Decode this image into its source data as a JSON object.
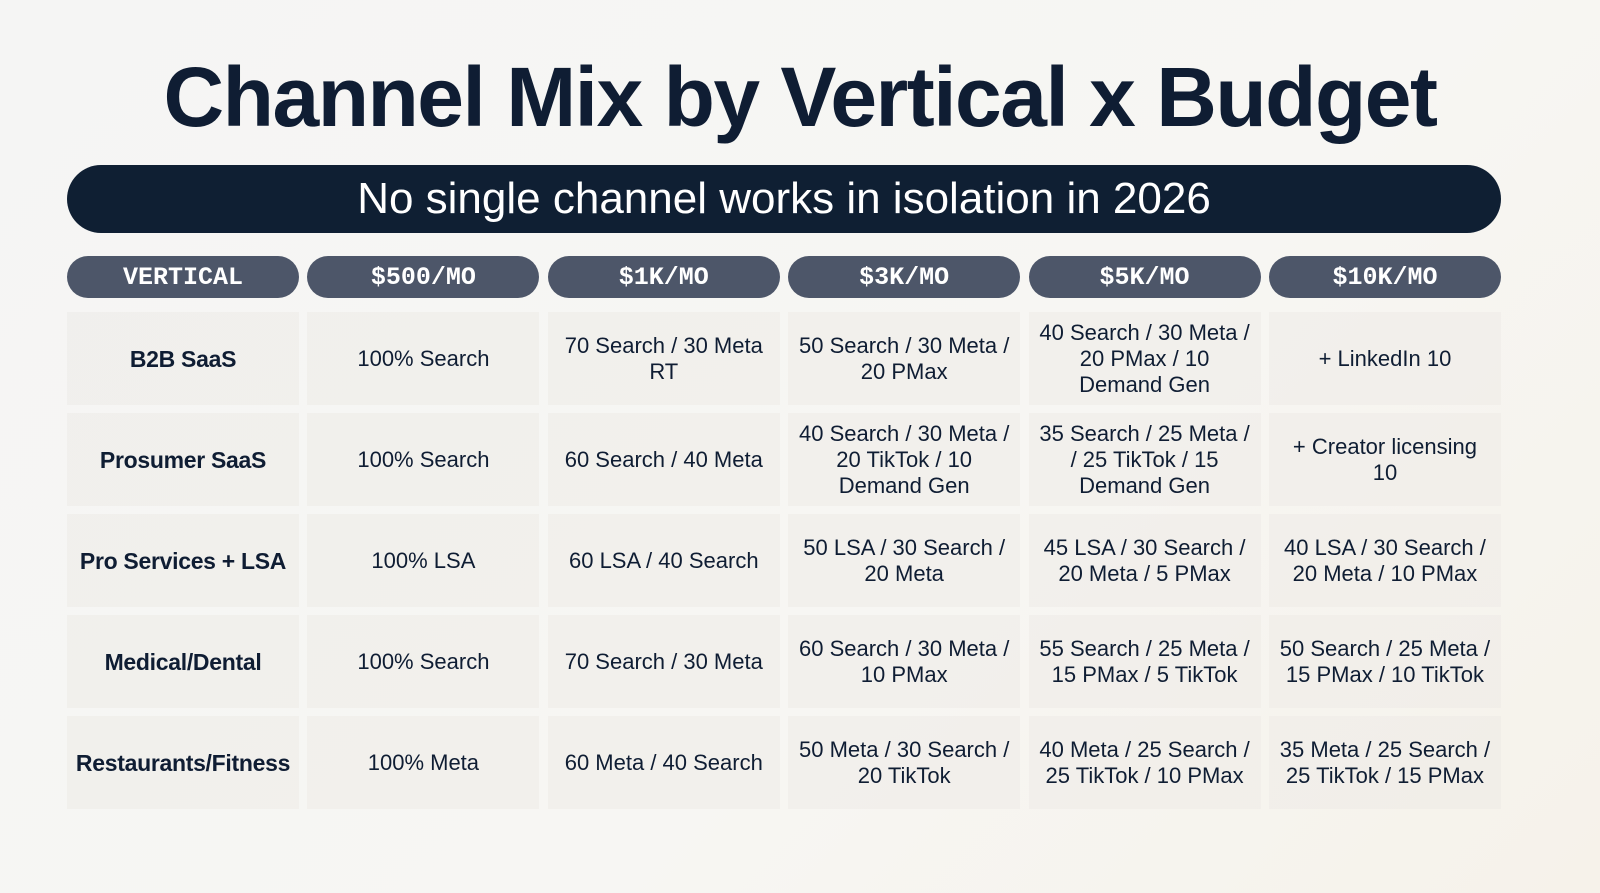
{
  "header": {
    "title": "Channel Mix by Vertical x Budget",
    "subtitle": "No single channel works in isolation in 2026"
  },
  "table": {
    "headers": [
      "VERTICAL",
      "$500/MO",
      "$1K/MO",
      "$3K/MO",
      "$5K/MO",
      "$10K/MO"
    ],
    "rows": [
      [
        "B2B SaaS",
        "100% Search",
        "70 Search / 30 Meta RT",
        "50 Search / 30 Meta / 20 PMax",
        "40 Search / 30 Meta / 20 PMax / 10 Demand Gen",
        "+ LinkedIn 10"
      ],
      [
        "Prosumer SaaS",
        "100% Search",
        "60 Search / 40 Meta",
        "40 Search / 30 Meta / 20 TikTok / 10 Demand Gen",
        "35 Search / 25 Meta / / 25 TikTok / 15 Demand Gen",
        "+ Creator licensing 10"
      ],
      [
        "Pro Services + LSA",
        "100% LSA",
        "60 LSA / 40 Search",
        "50 LSA / 30 Search / 20 Meta",
        "45 LSA / 30 Search / 20 Meta / 5 PMax",
        "40 LSA / 30 Search / 20 Meta / 10 PMax"
      ],
      [
        "Medical/Dental",
        "100% Search",
        "70 Search / 30 Meta",
        "60 Search / 30 Meta / 10 PMax",
        "55 Search / 25 Meta / 15 PMax / 5 TikTok",
        "50 Search / 25 Meta / 15 PMax / 10 TikTok"
      ],
      [
        "Restaurants/Fitness",
        "100% Meta",
        "60 Meta / 40 Search",
        "50 Meta / 30 Search / 20 TikTok",
        "40 Meta / 25 Search / 25 TikTok / 10 PMax",
        "35 Meta / 25 Search / 25 TikTok / 15 PMax"
      ]
    ]
  }
}
